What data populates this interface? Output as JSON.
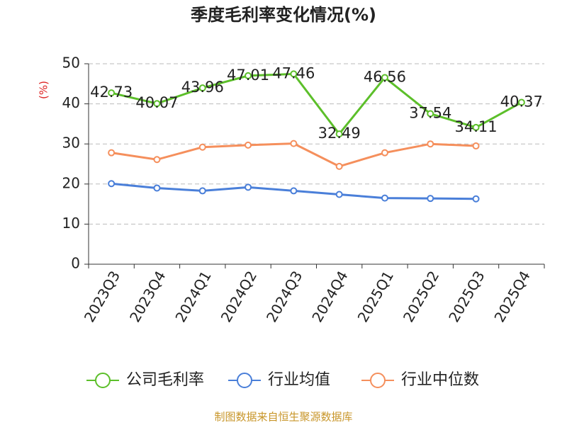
{
  "chart_data": {
    "type": "line",
    "title": "季度毛利率变化情况(%)",
    "y_label": "(%)",
    "source": "制图数据来自恒生聚源数据库",
    "categories": [
      "2023Q3",
      "2023Q4",
      "2024Q1",
      "2024Q2",
      "2024Q3",
      "2024Q4",
      "2025Q1",
      "2025Q2",
      "2025Q3",
      "2025Q4"
    ],
    "ylim": [
      0,
      50
    ],
    "yticks": [
      0,
      10,
      20,
      30,
      40,
      50
    ],
    "grid": true,
    "series": [
      {
        "name": "公司毛利率",
        "color": "#5cbf2a",
        "values": [
          42.73,
          40.07,
          43.96,
          47.01,
          47.46,
          32.49,
          46.56,
          37.54,
          34.11,
          40.37
        ],
        "data_labels": true
      },
      {
        "name": "行业均值",
        "color": "#4a7fd9",
        "values": [
          20.1,
          19.0,
          18.3,
          19.2,
          18.3,
          17.4,
          16.5,
          16.4,
          16.3,
          null
        ]
      },
      {
        "name": "行业中位数",
        "color": "#f58f5c",
        "values": [
          27.8,
          26.1,
          29.2,
          29.7,
          30.1,
          24.4,
          27.8,
          30.0,
          29.5,
          null
        ]
      }
    ]
  }
}
